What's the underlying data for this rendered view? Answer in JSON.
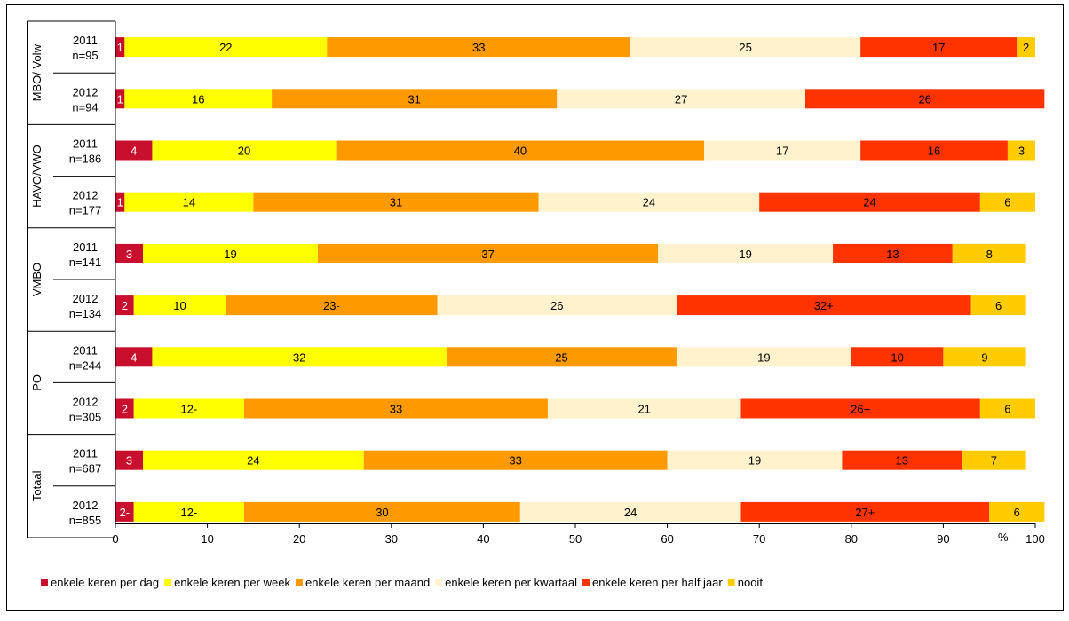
{
  "chart_data": {
    "type": "bar",
    "orientation": "horizontal",
    "stacked": true,
    "groups": [
      {
        "name": "MBO/ Volw",
        "rows": [
          0,
          1
        ]
      },
      {
        "name": "HAVO/VWO",
        "rows": [
          2,
          3
        ]
      },
      {
        "name": "VMBO",
        "rows": [
          4,
          5
        ]
      },
      {
        "name": "PO",
        "rows": [
          6,
          7
        ]
      },
      {
        "name": "Totaal",
        "rows": [
          8,
          9
        ]
      }
    ],
    "rows": [
      {
        "year": "2011",
        "n": "n=95"
      },
      {
        "year": "2012",
        "n": "n=94"
      },
      {
        "year": "2011",
        "n": "n=186"
      },
      {
        "year": "2012",
        "n": "n=177"
      },
      {
        "year": "2011",
        "n": "n=141"
      },
      {
        "year": "2012",
        "n": "n=134"
      },
      {
        "year": "2011",
        "n": "n=244"
      },
      {
        "year": "2012",
        "n": "n=305"
      },
      {
        "year": "2011",
        "n": "n=687"
      },
      {
        "year": "2012",
        "n": "n=855"
      }
    ],
    "series": [
      {
        "name": "enkele keren per dag",
        "color": "#c8102e",
        "label_color": "#ffffff",
        "values": [
          1,
          1,
          4,
          1,
          3,
          2,
          4,
          2,
          3,
          2
        ],
        "labels": [
          "1",
          "1",
          "4",
          "1",
          "3",
          "2",
          "4",
          "2",
          "3",
          "2-"
        ]
      },
      {
        "name": "enkele keren per week",
        "color": "#ffff00",
        "label_color": "#000000",
        "values": [
          22,
          16,
          20,
          14,
          19,
          10,
          32,
          12,
          24,
          12
        ],
        "labels": [
          "22",
          "16",
          "20",
          "14",
          "19",
          "10",
          "32",
          "12-",
          "24",
          "12-"
        ]
      },
      {
        "name": "enkele keren per maand",
        "color": "#ff9900",
        "label_color": "#000000",
        "values": [
          33,
          31,
          40,
          31,
          37,
          23,
          25,
          33,
          33,
          30
        ],
        "labels": [
          "33",
          "31",
          "40",
          "31",
          "37",
          "23-",
          "25",
          "33",
          "33",
          "30"
        ]
      },
      {
        "name": "enkele keren per kwartaal",
        "color": "#fff2cc",
        "label_color": "#000000",
        "values": [
          25,
          27,
          17,
          24,
          19,
          26,
          19,
          21,
          19,
          24
        ],
        "labels": [
          "25",
          "27",
          "17",
          "24",
          "19",
          "26",
          "19",
          "21",
          "19",
          "24"
        ]
      },
      {
        "name": "enkele keren per half jaar",
        "color": "#ff3300",
        "label_color": "#000000",
        "values": [
          17,
          26,
          16,
          24,
          13,
          32,
          10,
          26,
          13,
          27
        ],
        "labels": [
          "17",
          "26",
          "16",
          "24",
          "13",
          "32+",
          "10",
          "26+",
          "13",
          "27+"
        ]
      },
      {
        "name": "nooit",
        "color": "#ffcc00",
        "label_color": "#000000",
        "values": [
          2,
          0,
          3,
          6,
          8,
          6,
          9,
          6,
          7,
          6
        ],
        "labels": [
          "2",
          "",
          "3",
          "6",
          "8",
          "6",
          "9",
          "6",
          "7",
          "6"
        ]
      }
    ],
    "xlim": [
      0,
      100
    ],
    "xticks": [
      0,
      10,
      20,
      30,
      40,
      50,
      60,
      70,
      80,
      90,
      100
    ],
    "x_unit": "%",
    "legend_position": "bottom",
    "grid": false
  }
}
